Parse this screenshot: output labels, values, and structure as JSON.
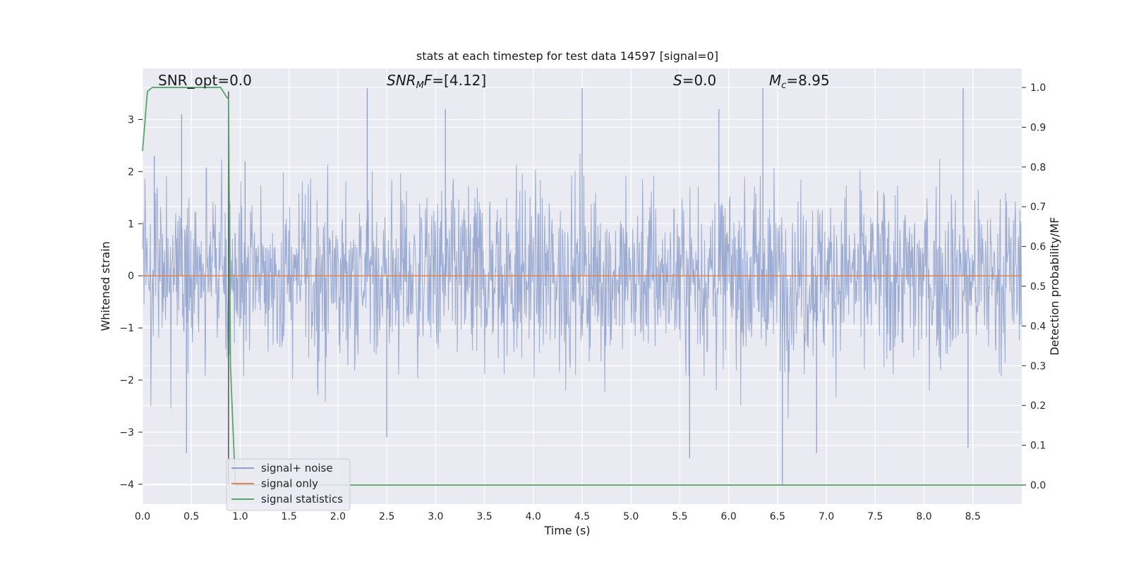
{
  "chart_data": {
    "type": "line",
    "title": "stats at each timestep for test data 14597 [signal=0]",
    "xlabel": "Time (s)",
    "ylabel": "Whitened strain",
    "ylabel_right": "Detection probability/MF",
    "xlim": [
      0.0,
      9.0
    ],
    "ylim": [
      -4.38,
      3.98
    ],
    "ylim_right": [
      -0.048,
      1.048
    ],
    "x_ticks": [
      "0.0",
      "0.5",
      "1.0",
      "1.5",
      "2.0",
      "2.5",
      "3.0",
      "3.5",
      "4.0",
      "4.5",
      "5.0",
      "5.5",
      "6.0",
      "6.5",
      "7.0",
      "7.5",
      "8.0",
      "8.5"
    ],
    "y_ticks": [
      "−4",
      "−3",
      "−2",
      "−1",
      "0",
      "1",
      "2",
      "3"
    ],
    "y_ticks_right": [
      "0.0",
      "0.1",
      "0.2",
      "0.3",
      "0.4",
      "0.5",
      "0.6",
      "0.7",
      "0.8",
      "0.9",
      "1.0"
    ],
    "grid": true,
    "legend_position": "lower-left",
    "annotations": {
      "snr_opt": "SNR_opt=0.0",
      "snr_mf": "=[4.12]",
      "s_stat": "=0.0",
      "mc": "=8.95",
      "snr_mf_symbol": "SNR",
      "snr_mf_sub": "M",
      "snr_mf_after": "F",
      "s_symbol": "S",
      "mc_symbol": "M",
      "mc_sub": "c"
    },
    "series": [
      {
        "name": "signal+ noise",
        "axis": "left",
        "color": "#8da0cb",
        "description_range": [
          -4.0,
          3.6
        ],
        "peaks_high": [
          [
            0.12,
            2.3
          ],
          [
            0.4,
            3.1
          ],
          [
            1.05,
            2.2
          ],
          [
            2.3,
            3.6
          ],
          [
            3.1,
            3.2
          ],
          [
            4.5,
            3.6
          ],
          [
            5.9,
            3.2
          ],
          [
            6.35,
            3.6
          ],
          [
            8.4,
            3.6
          ]
        ],
        "peaks_low": [
          [
            0.45,
            -3.4
          ],
          [
            2.5,
            -3.1
          ],
          [
            5.6,
            -3.5
          ],
          [
            6.55,
            -4.0
          ],
          [
            6.9,
            -3.4
          ],
          [
            8.45,
            -3.3
          ]
        ]
      },
      {
        "name": "signal only",
        "axis": "left",
        "color": "#dd8452",
        "x": [
          0.0,
          9.0
        ],
        "y": [
          0.0,
          0.0
        ]
      },
      {
        "name": "signal statistics",
        "axis": "right",
        "color": "#55a868",
        "x": [
          0.0,
          0.05,
          0.1,
          0.15,
          0.3,
          0.5,
          0.7,
          0.8,
          0.85,
          0.88,
          0.9,
          0.95,
          9.0
        ],
        "y": [
          0.84,
          0.99,
          1.0,
          1.0,
          1.0,
          1.0,
          1.0,
          1.0,
          0.98,
          0.97,
          0.3,
          0.0,
          0.0
        ]
      }
    ],
    "vertical_marker": {
      "x": 0.88,
      "color": "#555555"
    }
  }
}
